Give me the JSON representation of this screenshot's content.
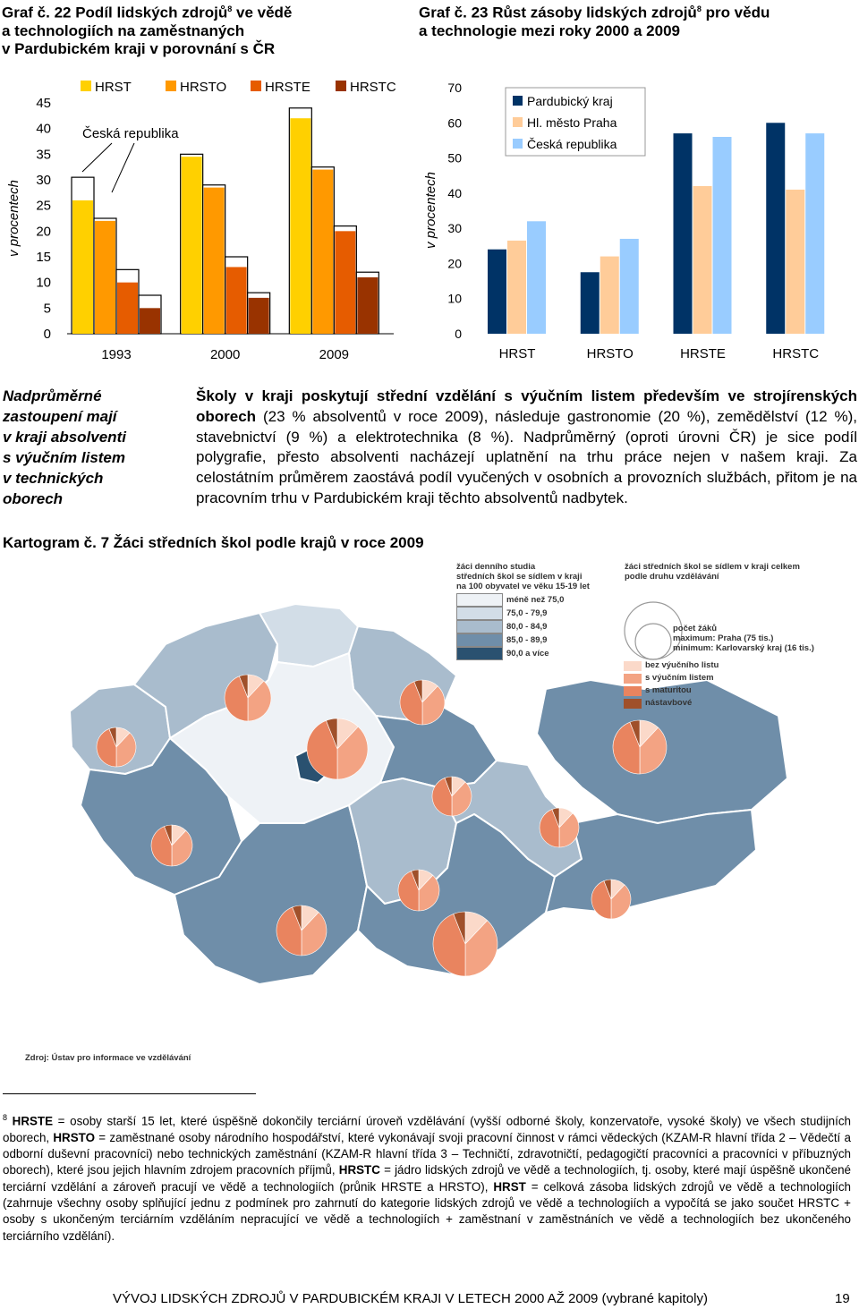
{
  "graph1": {
    "title_l1": "Graf č. 22 Podíl lidských zdrojů",
    "title_sup": "8",
    "title_l1_rest": " ve vědě",
    "title_l2": "a technologiích na zaměstnaných",
    "title_l3": "v Pardubickém kraji v porovnání s ČR",
    "ylabel": "v procentech",
    "annotation": "Česká republika"
  },
  "graph2": {
    "title_l1": "Graf č. 23 Růst zásoby lidských zdrojů",
    "title_sup": "8",
    "title_l1_rest": " pro vědu",
    "title_l2": "a technologie mezi roky 2000 a 2009",
    "ylabel": "v procentech"
  },
  "chart_data": [
    {
      "type": "bar",
      "categories": [
        "1993",
        "2000",
        "2009"
      ],
      "series": [
        {
          "name": "HRST",
          "values": [
            26,
            34.5,
            42
          ],
          "cz_values": [
            30.5,
            35,
            44
          ]
        },
        {
          "name": "HRSTO",
          "values": [
            22,
            28.5,
            32
          ],
          "cz_values": [
            22.5,
            29,
            32.5
          ]
        },
        {
          "name": "HRSTE",
          "values": [
            10,
            13,
            20
          ],
          "cz_values": [
            12.5,
            15,
            21
          ]
        },
        {
          "name": "HRSTC",
          "values": [
            5,
            7,
            11
          ],
          "cz_values": [
            7.5,
            8,
            12
          ]
        }
      ],
      "ylabel": "v procentech",
      "ylim": [
        0,
        45
      ],
      "yticks": [
        0,
        5,
        10,
        15,
        20,
        25,
        30,
        35,
        40,
        45
      ],
      "colors": [
        "#ffd000",
        "#ff9900",
        "#e65c00",
        "#993300"
      ],
      "legend_position": "top"
    },
    {
      "type": "bar",
      "categories": [
        "HRST",
        "HRSTO",
        "HRSTE",
        "HRSTC"
      ],
      "series": [
        {
          "name": "Pardubický kraj",
          "values": [
            24,
            17.5,
            57,
            60
          ]
        },
        {
          "name": "Hl. město Praha",
          "values": [
            26.5,
            22,
            42,
            41
          ]
        },
        {
          "name": "Česká republika",
          "values": [
            32,
            27,
            56,
            57
          ]
        }
      ],
      "ylabel": "v procentech",
      "ylim": [
        0,
        70
      ],
      "yticks": [
        0,
        10,
        20,
        30,
        40,
        50,
        60,
        70
      ],
      "colors": [
        "#003366",
        "#ffcc99",
        "#99ccff"
      ],
      "legend_position": "top-left"
    }
  ],
  "side_note": [
    "Nadprůměrné",
    "zastoupení mají",
    "v kraji absolventi",
    "s výučním listem",
    "v technických",
    "oborech"
  ],
  "paragraph": {
    "p1_bold": "Školy v kraji poskytují střední vzdělání s výučním listem především ve strojírenských oborech",
    "p1_rest": " (23 % absolventů v roce 2009), následuje gastronomie (20 %), zemědělství (12 %), stavebnictví (9 %) a elektrotechnika (8 %). Nadprůměrný (oproti úrovni ČR) je sice podíl polygrafie, přesto absolventi nacházejí uplatnění na trhu práce nejen v našem kraji. Za celostátním průměrem zaostává podíl vyučených v osobních a provozních službách, přitom je na pracovním trhu v Pardubickém kraji těchto absolventů nadbytek."
  },
  "kartogram": {
    "title": "Kartogram č. 7 Žáci středních škol podle krajů v roce 2009",
    "legend1_title_l1": "žáci denního studia",
    "legend1_title_l2": "středních škol se sídlem v kraji",
    "legend1_title_l3": "na 100 obyvatel ve věku 15-19 let",
    "legend1_items": [
      {
        "label": "méně než 75,0",
        "color": "#eef2f6"
      },
      {
        "label": "75,0 - 79,9",
        "color": "#d2dde7"
      },
      {
        "label": "80,0 - 84,9",
        "color": "#a9bccd"
      },
      {
        "label": "85,0 - 89,9",
        "color": "#6f8ea9"
      },
      {
        "label": "90,0 a více",
        "color": "#2a5170"
      }
    ],
    "legend2_title_l1": "žáci středních škol se sídlem v kraji celkem",
    "legend2_title_l2": "podle druhu vzdělávání",
    "circle_text_l1": "počet žáků",
    "circle_text_l2": "maximum: Praha (75 tis.)",
    "circle_text_l3": "minimum: Karlovarský kraj (16 tis.)",
    "legend2_items": [
      {
        "label": "bez výučního listu",
        "color": "#fbd9c9"
      },
      {
        "label": "s výučním listem",
        "color": "#f3a383"
      },
      {
        "label": "s maturitou",
        "color": "#e9845f"
      },
      {
        "label": "nástavbové",
        "color": "#a0502a"
      }
    ],
    "source": "Zdroj: Ústav pro informace ve vzdělávání"
  },
  "footnote": {
    "marker": "8",
    "t1": "HRSTE",
    "t2": " = osoby starší 15 let, které úspěšně dokončily terciární úroveň vzdělávání (vyšší odborné školy, konzervatoře, vysoké školy) ve všech studijních oborech, ",
    "t3": "HRSTO",
    "t4": " = zaměstnané osoby národního hospodářství, které vykonávají svoji pracovní činnost v rámci vědeckých (KZAM-R hlavní třída 2 – Vědečtí a odborní duševní pracovníci) nebo technických zaměstnání (KZAM-R hlavní třída 3 – Techničtí, zdravotničtí, pedagogičtí pracovníci a pracovníci v příbuzných oborech), které jsou jejich hlavním zdrojem pracovních příjmů, ",
    "t5": "HRSTC",
    "t6": " = jádro lidských zdrojů ve vědě a technologiích, tj. osoby, které mají úspěšně ukončené terciární vzdělání a zároveň pracují ve vědě a technologiích (průnik HRSTE a HRSTO), ",
    "t7": "HRST",
    "t8": " = celková zásoba lidských zdrojů ve vědě a technologiích (zahrnuje všechny osoby splňující jednu z podmínek pro zahrnutí do kategorie lidských zdrojů ve vědě a technologiích a vypočítá se jako součet HRSTC + osoby s ukončeným terciárním vzděláním nepracující ve vědě a technologiích + zaměstnaní v zaměstnáních ve vědě a technologiích bez ukončeného terciárního vzdělání)."
  },
  "page_footer": {
    "text": "VÝVOJ LIDSKÝCH ZDROJŮ V PARDUBICKÉM KRAJI V LETECH 2000 AŽ 2009 (vybrané kapitoly)",
    "page_number": "19"
  }
}
